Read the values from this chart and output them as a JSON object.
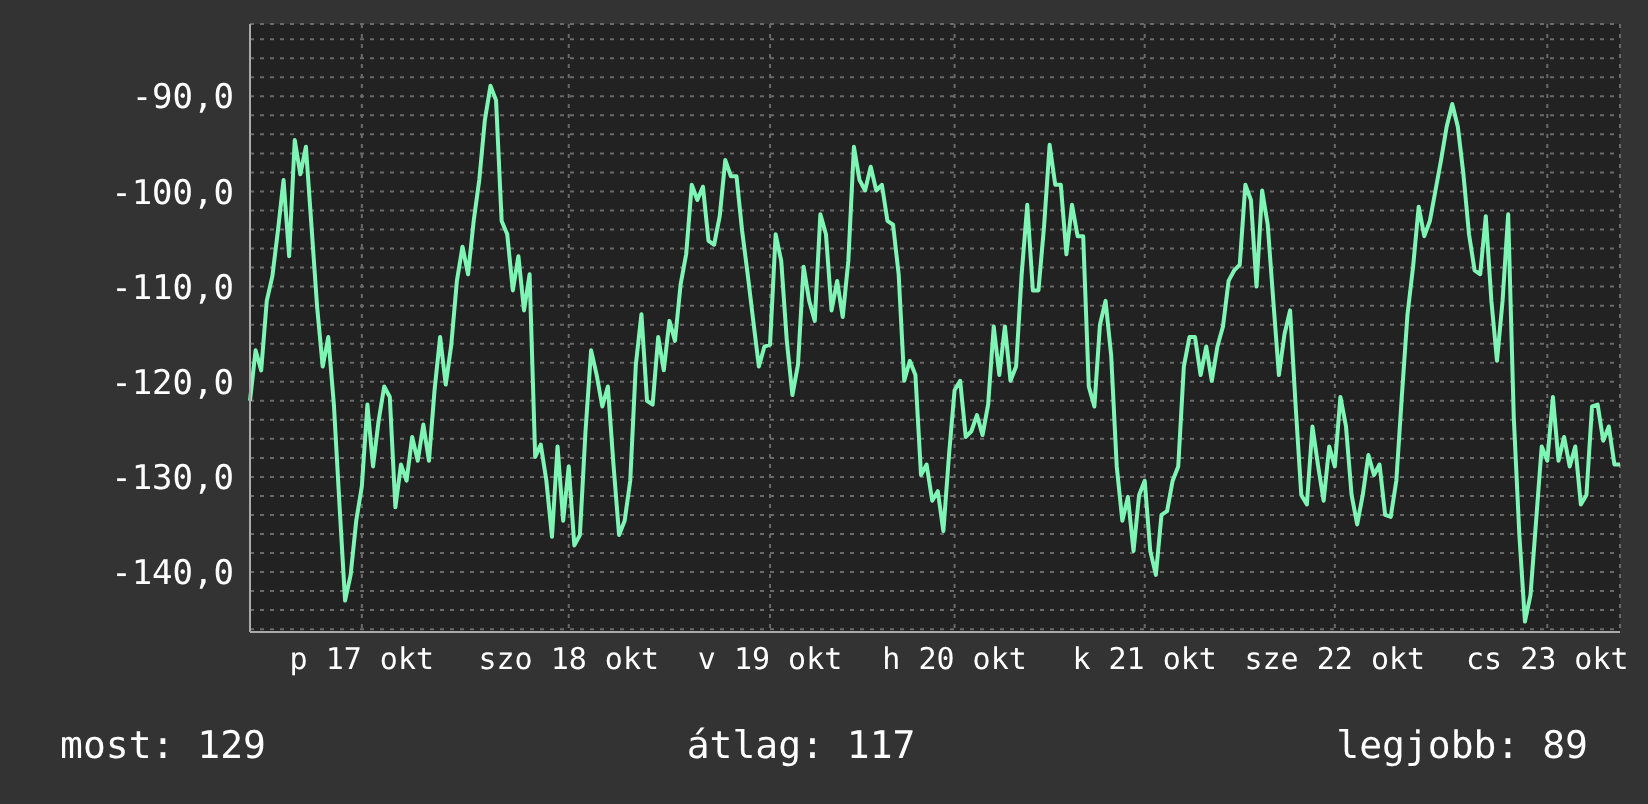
{
  "chart_data": {
    "type": "line",
    "marker": "none",
    "line_style": "solid",
    "grid": true,
    "categories": [
      null,
      null,
      null,
      null,
      null,
      null,
      null,
      null,
      null,
      null,
      null,
      null,
      null,
      null,
      null,
      null,
      null,
      null,
      null,
      null,
      "p 17 okt",
      null,
      null,
      null,
      null,
      null,
      null,
      null,
      null,
      null,
      null,
      null,
      null,
      null,
      null,
      null,
      null,
      null,
      null,
      null,
      null,
      null,
      null,
      null,
      null,
      null,
      null,
      null,
      null,
      null,
      null,
      null,
      null,
      null,
      null,
      null,
      null,
      "szo 18 okt",
      null,
      null,
      null,
      null,
      null,
      null,
      null,
      null,
      null,
      null,
      null,
      null,
      null,
      null,
      null,
      null,
      null,
      null,
      null,
      null,
      null,
      null,
      null,
      null,
      null,
      null,
      null,
      null,
      null,
      null,
      null,
      null,
      null,
      null,
      null,
      "v 19 okt",
      null,
      null,
      null,
      null,
      null,
      null,
      null,
      null,
      null,
      null,
      null,
      null,
      null,
      null,
      null,
      null,
      null,
      null,
      null,
      null,
      null,
      null,
      null,
      null,
      null,
      null,
      null,
      null,
      null,
      null,
      null,
      null,
      "h 20 okt",
      null,
      null,
      null,
      null,
      null,
      null,
      null,
      null,
      null,
      null,
      null,
      null,
      null,
      null,
      null,
      null,
      null,
      null,
      null,
      null,
      null,
      null,
      null,
      null,
      null,
      null,
      null,
      null,
      null,
      null,
      null,
      null,
      null,
      "k 21 okt",
      null,
      null,
      null,
      null,
      null,
      null,
      null,
      null,
      null,
      null,
      null,
      null,
      null,
      null,
      null,
      null,
      null,
      null,
      null,
      null,
      null,
      null,
      null,
      null,
      null,
      null,
      null,
      null,
      null,
      null,
      null,
      null,
      null,
      "sze 22 okt",
      null,
      null,
      null,
      null,
      null,
      null,
      null,
      null,
      null,
      null,
      null,
      null,
      null,
      null,
      null,
      null,
      null,
      null,
      null,
      null,
      null,
      null,
      null,
      null,
      null,
      null,
      null,
      null,
      null,
      null,
      null,
      null,
      null,
      null,
      null,
      null,
      null,
      "cs 23 okt",
      null,
      null,
      null,
      null,
      null,
      null,
      null,
      null,
      null,
      null,
      null,
      null,
      null
    ],
    "ylim": [
      -146.3,
      -82.4
    ],
    "yticks": [
      {
        "value": -146,
        "label": null
      },
      {
        "value": -144,
        "label": null
      },
      {
        "value": -142,
        "label": null
      },
      {
        "value": -140,
        "label": "-140,0"
      },
      {
        "value": -138,
        "label": null
      },
      {
        "value": -136,
        "label": null
      },
      {
        "value": -134,
        "label": null
      },
      {
        "value": -132,
        "label": null
      },
      {
        "value": -130,
        "label": "-130,0"
      },
      {
        "value": -128,
        "label": null
      },
      {
        "value": -126,
        "label": null
      },
      {
        "value": -124,
        "label": null
      },
      {
        "value": -122,
        "label": null
      },
      {
        "value": -120,
        "label": "-120,0"
      },
      {
        "value": -118,
        "label": null
      },
      {
        "value": -116,
        "label": null
      },
      {
        "value": -114,
        "label": null
      },
      {
        "value": -112,
        "label": null
      },
      {
        "value": -110,
        "label": "-110,0"
      },
      {
        "value": -108,
        "label": null
      },
      {
        "value": -106,
        "label": null
      },
      {
        "value": -104,
        "label": null
      },
      {
        "value": -102,
        "label": null
      },
      {
        "value": -100,
        "label": "-100,0"
      },
      {
        "value": -98,
        "label": null
      },
      {
        "value": -96,
        "label": null
      },
      {
        "value": -94,
        "label": null
      },
      {
        "value": -92,
        "label": null
      },
      {
        "value": -90,
        "label": "-90,0"
      },
      {
        "value": -88,
        "label": null
      },
      {
        "value": -86,
        "label": null
      },
      {
        "value": -84,
        "label": null
      }
    ],
    "annotations": [
      "most: 129",
      "átlag: 117",
      "legjobb: 89"
    ],
    "series": [
      {
        "color": "#7ff5b5",
        "values": [
          -122.0,
          -116.7,
          -118.8,
          -111.5,
          -108.9,
          -104.1,
          -98.8,
          -106.8,
          -94.6,
          -98.2,
          -95.3,
          -103.7,
          -112.1,
          -118.4,
          -115.3,
          -122.4,
          -132.9,
          -143.0,
          -140.3,
          -134.6,
          -131.0,
          -122.4,
          -128.9,
          -124.1,
          -120.5,
          -121.6,
          -133.2,
          -128.7,
          -130.4,
          -125.8,
          -128.3,
          -124.5,
          -128.3,
          -120.9,
          -115.3,
          -120.3,
          -116.1,
          -109.4,
          -105.8,
          -108.7,
          -103.1,
          -98.8,
          -92.5,
          -88.9,
          -90.4,
          -103.1,
          -104.5,
          -110.4,
          -106.8,
          -112.5,
          -108.7,
          -127.9,
          -126.6,
          -130.4,
          -136.3,
          -126.8,
          -134.6,
          -128.9,
          -137.2,
          -136.1,
          -125.2,
          -116.7,
          -119.3,
          -122.6,
          -120.5,
          -128.7,
          -136.1,
          -134.6,
          -130.4,
          -118.2,
          -112.9,
          -122.0,
          -122.4,
          -115.3,
          -118.8,
          -113.6,
          -115.7,
          -109.8,
          -106.6,
          -99.3,
          -100.9,
          -99.5,
          -105.2,
          -105.6,
          -102.6,
          -96.7,
          -98.4,
          -98.4,
          -104.1,
          -108.7,
          -113.6,
          -118.4,
          -116.3,
          -116.1,
          -104.5,
          -107.3,
          -115.7,
          -121.4,
          -118.2,
          -107.9,
          -111.5,
          -113.6,
          -102.4,
          -104.5,
          -112.5,
          -109.4,
          -113.2,
          -107.3,
          -95.3,
          -98.8,
          -99.9,
          -97.4,
          -99.9,
          -99.3,
          -103.1,
          -103.5,
          -108.7,
          -119.9,
          -117.8,
          -119.3,
          -129.8,
          -128.7,
          -132.5,
          -131.5,
          -135.7,
          -127.7,
          -120.9,
          -119.9,
          -125.8,
          -125.2,
          -123.5,
          -125.6,
          -122.4,
          -114.2,
          -119.3,
          -114.2,
          -119.9,
          -118.4,
          -108.7,
          -101.4,
          -110.4,
          -110.4,
          -103.7,
          -95.1,
          -99.3,
          -99.3,
          -106.6,
          -101.4,
          -104.7,
          -104.7,
          -120.5,
          -122.6,
          -114.0,
          -111.5,
          -117.2,
          -128.9,
          -134.6,
          -132.1,
          -137.8,
          -131.9,
          -130.4,
          -137.8,
          -140.3,
          -134.0,
          -133.6,
          -130.4,
          -128.9,
          -118.4,
          -115.3,
          -115.3,
          -119.3,
          -116.3,
          -119.9,
          -116.3,
          -114.2,
          -109.4,
          -108.3,
          -107.7,
          -99.3,
          -100.9,
          -110.0,
          -99.9,
          -103.5,
          -111.5,
          -119.3,
          -115.0,
          -112.5,
          -122.6,
          -131.9,
          -132.9,
          -124.7,
          -128.8,
          -132.5,
          -126.8,
          -128.9,
          -121.6,
          -124.7,
          -131.9,
          -135.0,
          -131.9,
          -127.7,
          -129.8,
          -128.7,
          -134.0,
          -134.2,
          -130.4,
          -121.4,
          -112.9,
          -107.9,
          -101.6,
          -104.7,
          -103.1,
          -99.9,
          -96.7,
          -93.2,
          -90.8,
          -93.2,
          -98.2,
          -104.5,
          -108.3,
          -108.7,
          -102.6,
          -111.5,
          -117.8,
          -111.5,
          -102.4,
          -123.7,
          -136.1,
          -145.2,
          -142.4,
          -134.6,
          -126.8,
          -128.3,
          -121.6,
          -128.3,
          -125.8,
          -128.9,
          -126.8,
          -132.9,
          -131.9,
          -122.6,
          -122.4,
          -126.2,
          -124.7,
          -128.7,
          -128.7
        ]
      }
    ]
  }
}
